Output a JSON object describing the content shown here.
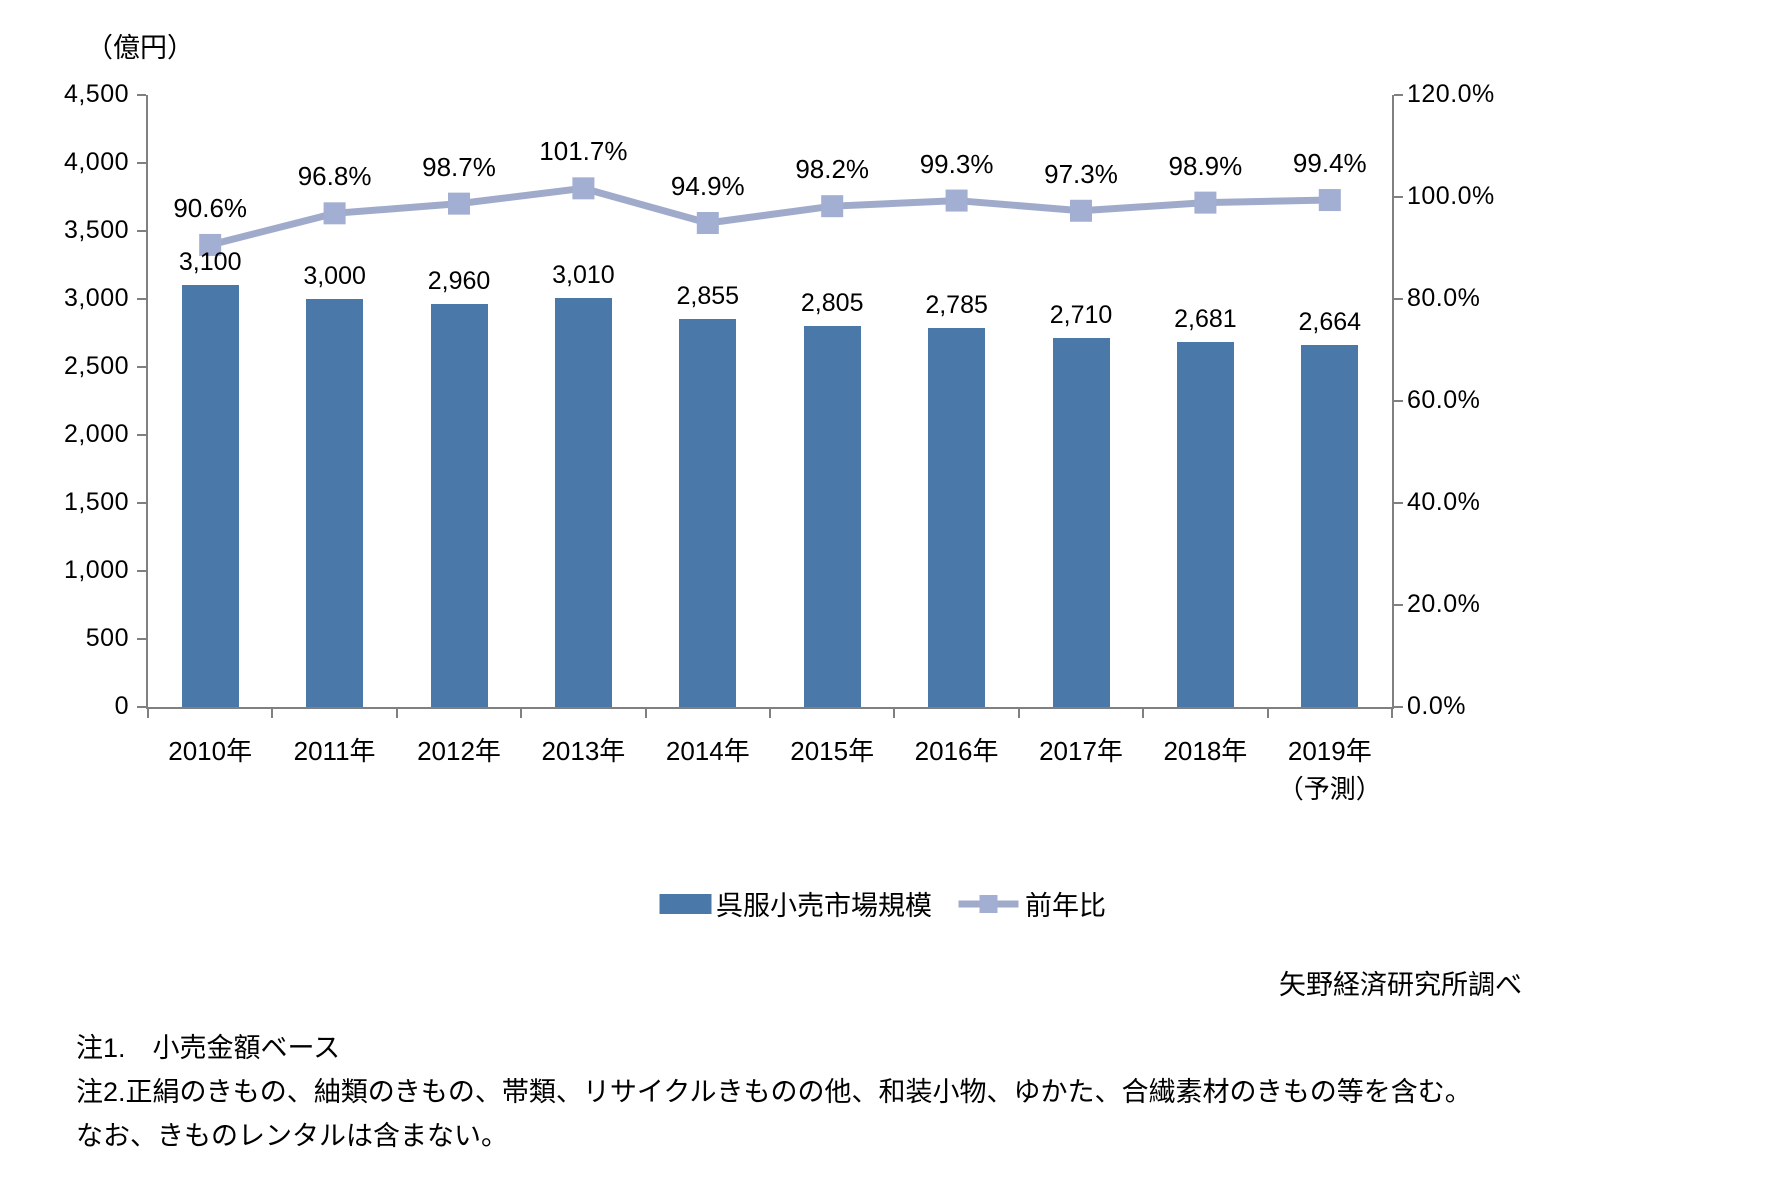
{
  "unit_label": "（億円）",
  "source": "矢野経済研究所調べ",
  "notes": [
    "注1.　小売金額ベース",
    "注2.正絹のきもの、紬類のきもの、帯類、リサイクルきものの他、和装小物、ゆかた、合繊素材のきもの等を含む。",
    "なお、きものレンタルは含まない。"
  ],
  "legend": {
    "bar_label": "呉服小売市場規模",
    "line_label": "前年比"
  },
  "colors": {
    "bar": "#4A78A8",
    "line": "#A0ABCB",
    "marker": "#A2AFD2",
    "axis": "#808080",
    "text": "#000000"
  },
  "chart_data": {
    "type": "bar",
    "combo": "bar+line dual axis",
    "title": "",
    "categories": [
      "2010年",
      "2011年",
      "2012年",
      "2013年",
      "2014年",
      "2015年",
      "2016年",
      "2017年",
      "2018年",
      "2019年"
    ],
    "category_note": {
      "index": 9,
      "text": "（予測）"
    },
    "series": [
      {
        "name": "呉服小売市場規模",
        "type": "bar",
        "axis": "left",
        "values": [
          3100,
          3000,
          2960,
          3010,
          2855,
          2805,
          2785,
          2710,
          2681,
          2664
        ],
        "labels": [
          "3,100",
          "3,000",
          "2,960",
          "3,010",
          "2,855",
          "2,805",
          "2,785",
          "2,710",
          "2,681",
          "2,664"
        ]
      },
      {
        "name": "前年比",
        "type": "line",
        "axis": "right",
        "values": [
          90.6,
          96.8,
          98.7,
          101.7,
          94.9,
          98.2,
          99.3,
          97.3,
          98.9,
          99.4
        ],
        "labels": [
          "90.6%",
          "96.8%",
          "98.7%",
          "101.7%",
          "94.9%",
          "98.2%",
          "99.3%",
          "97.3%",
          "98.9%",
          "99.4%"
        ]
      }
    ],
    "left_axis": {
      "title": "（億円）",
      "min": 0,
      "max": 4500,
      "step": 500,
      "tick_labels": [
        "0",
        "500",
        "1,000",
        "1,500",
        "2,000",
        "2,500",
        "3,000",
        "3,500",
        "4,000",
        "4,500"
      ]
    },
    "right_axis": {
      "min": 0,
      "max": 120,
      "step": 20,
      "tick_labels": [
        "0.0%",
        "20.0%",
        "40.0%",
        "60.0%",
        "80.0%",
        "100.0%",
        "120.0%"
      ]
    },
    "grid": false,
    "legend_position": "bottom"
  }
}
